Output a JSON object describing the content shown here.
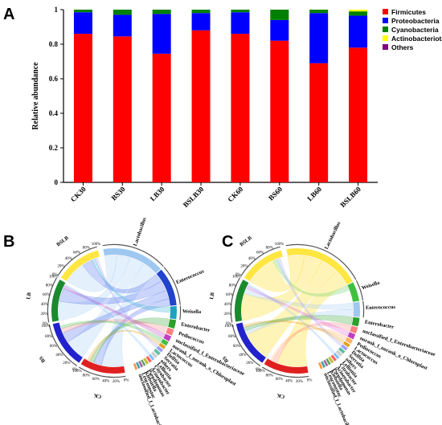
{
  "chart_data": [
    {
      "type": "bar",
      "stacked": true,
      "panel": "A",
      "categories": [
        "CK30",
        "BS30",
        "LB30",
        "BSLB30",
        "CK60",
        "BS60",
        "LB60",
        "BSLB60"
      ],
      "series": [
        {
          "name": "Firmicutes",
          "color": "#ff0000",
          "values": [
            0.86,
            0.845,
            0.745,
            0.88,
            0.86,
            0.82,
            0.69,
            0.78
          ]
        },
        {
          "name": "Proteobacteria",
          "color": "#0000ff",
          "values": [
            0.125,
            0.125,
            0.23,
            0.1,
            0.125,
            0.12,
            0.29,
            0.185
          ]
        },
        {
          "name": "Cyanobacteria",
          "color": "#008000",
          "values": [
            0.015,
            0.03,
            0.025,
            0.02,
            0.015,
            0.06,
            0.02,
            0.025
          ]
        },
        {
          "name": "Actinobacteriota",
          "color": "#ffff00",
          "values": [
            0.0,
            0.0,
            0.0,
            0.0,
            0.0,
            0.0,
            0.0,
            0.01
          ]
        },
        {
          "name": "Others",
          "color": "#800080",
          "values": [
            0.0,
            0.0,
            0.0,
            0.0,
            0.0,
            0.0,
            0.0,
            0.0
          ]
        }
      ],
      "ylabel": "Relative abundance",
      "ylim": [
        0,
        1
      ],
      "yticks": [
        "0",
        "0.2",
        "0.4",
        "0.6",
        "0.8",
        "1"
      ],
      "legend": "top-right"
    },
    {
      "type": "chord",
      "panel": "B",
      "samples": [
        "BSLB",
        "LB",
        "BS",
        "CK"
      ],
      "genera": [
        "Lactobacillus",
        "Enterococcus",
        "Weisella",
        "Enterobacter",
        "Pediococcus",
        "unclassified_f_Enterobacteriaceae",
        "norank_f_norank_o_Chloroplast",
        "Lactococcus",
        "Delftia",
        "Serratia",
        "others",
        "Lelliottia",
        "Citrobacter",
        "Acinetobacter",
        "Pseudomonas",
        "Klebsiella",
        "Leuconostoc",
        "unclassified_f_Lactobacillaceae"
      ],
      "percent_ticks": [
        "0%",
        "20%",
        "40%",
        "60%",
        "80%",
        "100%"
      ]
    },
    {
      "type": "chord",
      "panel": "C",
      "samples": [
        "BSLB",
        "LB",
        "BS",
        "CK"
      ],
      "genera": [
        "Lactobacillus",
        "Weisella",
        "Enterococcus",
        "Enterobacter",
        "unclassified_f_Enterobacteriaceae",
        "norank_f_norank_o_Chloroplast",
        "Pediococcus",
        "Lactococcus",
        "Delftia",
        "Serratia",
        "others",
        "Lelliottia",
        "Citrobacter",
        "Acinetobacter",
        "Pseudomonas",
        "Klebsiella",
        "Leuconostoc",
        "unclassified_f_Lactobacillaceae"
      ],
      "percent_ticks": [
        "0%",
        "20%",
        "40%",
        "60%",
        "80%",
        "100%"
      ]
    }
  ]
}
